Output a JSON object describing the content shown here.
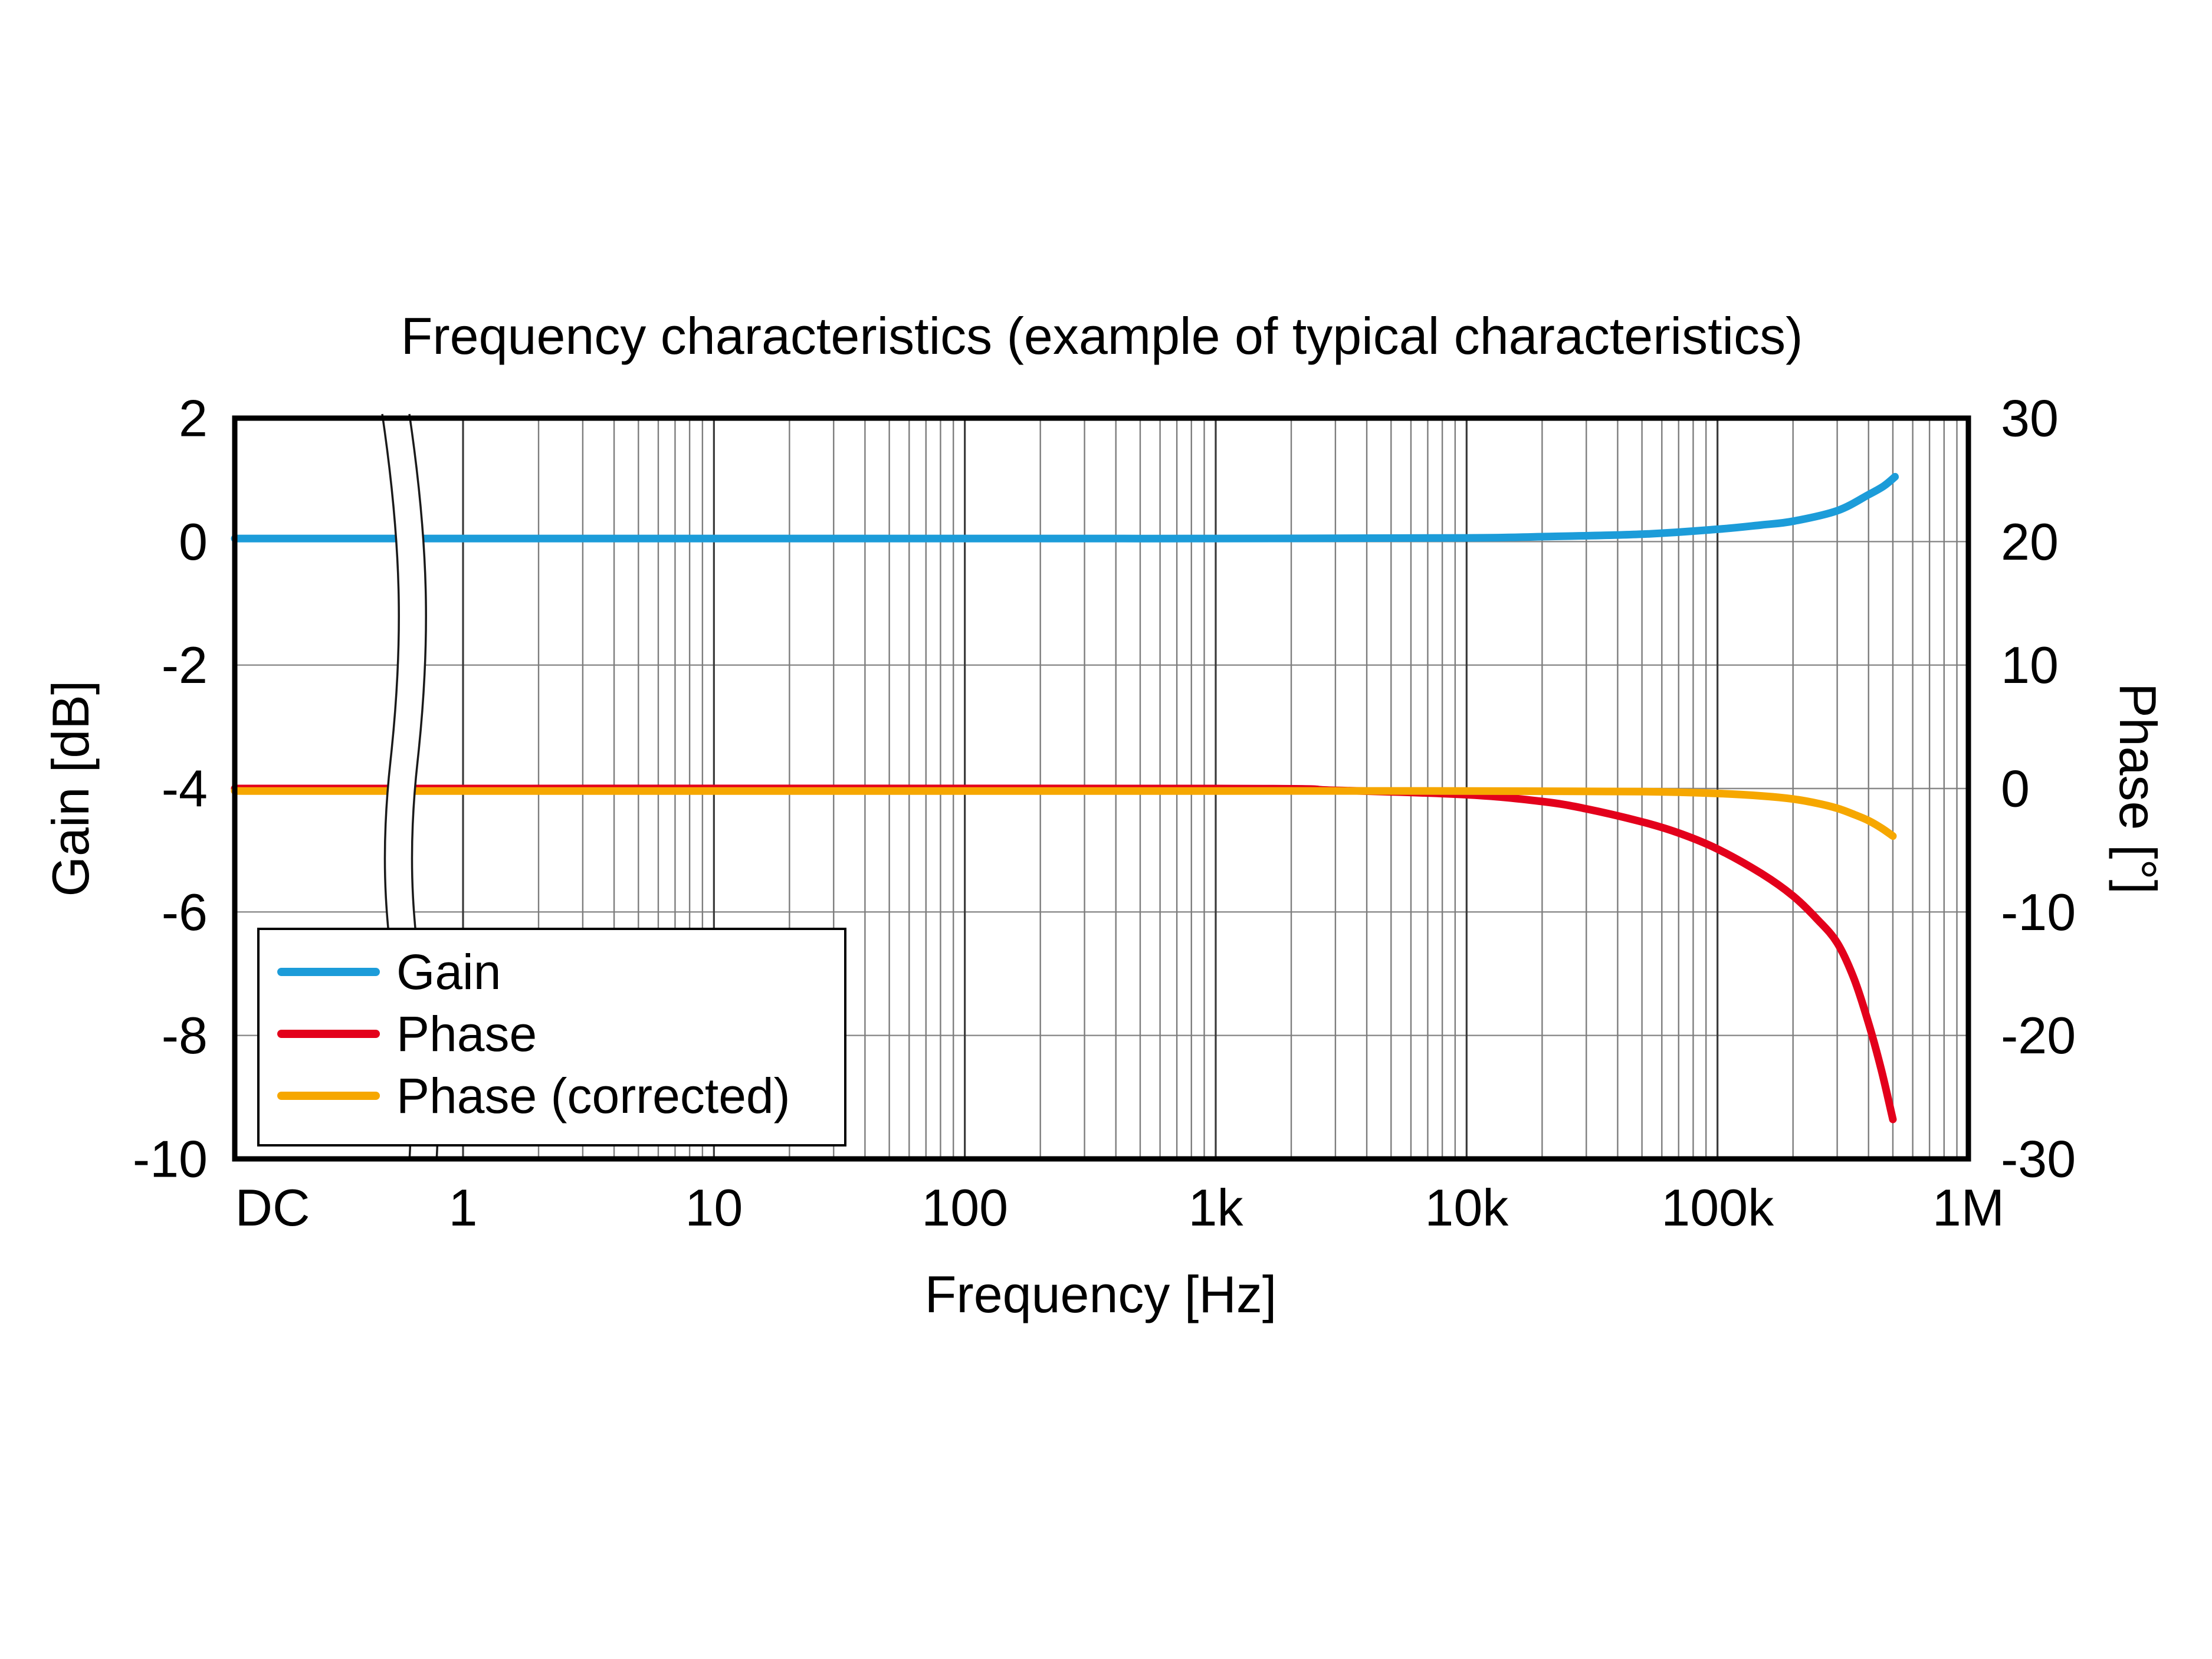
{
  "chart_data": {
    "type": "line",
    "title": "Frequency characteristics (example of typical characteristics)",
    "x_axis": {
      "label": "Frequency [Hz]",
      "scale": "log",
      "tick_labels": [
        "DC",
        "1",
        "10",
        "100",
        "1k",
        "10k",
        "100k",
        "1M"
      ],
      "axis_break": "between DC and 1",
      "range_hz": [
        1,
        1000000
      ]
    },
    "y_axis_left": {
      "label": "Gain [dB]",
      "min": -10,
      "max": 2,
      "ticks": [
        2,
        0,
        -2,
        -4,
        -6,
        -8,
        -10
      ]
    },
    "y_axis_right": {
      "label": "Phase [°]",
      "min": -30,
      "max": 30,
      "ticks": [
        30,
        20,
        10,
        0,
        -10,
        -20,
        -30
      ]
    },
    "grid": true,
    "legend": {
      "position": "lower left",
      "entries": [
        "Gain",
        "Phase",
        "Phase (corrected)"
      ]
    },
    "series": [
      {
        "name": "Gain",
        "axis": "left",
        "unit": "dB",
        "color": "#1c9cd9",
        "points": [
          [
            1,
            0.05
          ],
          [
            100,
            0.05
          ],
          [
            1000,
            0.05
          ],
          [
            10000,
            0.06
          ],
          [
            20000,
            0.08
          ],
          [
            50000,
            0.12
          ],
          [
            100000,
            0.2
          ],
          [
            150000,
            0.27
          ],
          [
            200000,
            0.33
          ],
          [
            300000,
            0.5
          ],
          [
            400000,
            0.76
          ],
          [
            460000,
            0.9
          ],
          [
            510000,
            1.05
          ]
        ]
      },
      {
        "name": "Phase",
        "axis": "right",
        "unit": "deg",
        "color": "#e3001b",
        "points": [
          [
            1,
            0
          ],
          [
            1000,
            0
          ],
          [
            3000,
            -0.15
          ],
          [
            10000,
            -0.5
          ],
          [
            20000,
            -1.05
          ],
          [
            30000,
            -1.65
          ],
          [
            50000,
            -2.7
          ],
          [
            70000,
            -3.6
          ],
          [
            100000,
            -4.9
          ],
          [
            150000,
            -6.9
          ],
          [
            200000,
            -8.7
          ],
          [
            250000,
            -10.6
          ],
          [
            300000,
            -12.5
          ],
          [
            350000,
            -15.4
          ],
          [
            400000,
            -19.0
          ],
          [
            450000,
            -22.8
          ],
          [
            500000,
            -26.8
          ]
        ]
      },
      {
        "name": "Phase (corrected)",
        "axis": "right",
        "unit": "deg",
        "color": "#f6a700",
        "points": [
          [
            1,
            -0.2
          ],
          [
            1000,
            -0.2
          ],
          [
            10000,
            -0.2
          ],
          [
            50000,
            -0.25
          ],
          [
            100000,
            -0.4
          ],
          [
            150000,
            -0.6
          ],
          [
            200000,
            -0.85
          ],
          [
            250000,
            -1.2
          ],
          [
            300000,
            -1.6
          ],
          [
            350000,
            -2.1
          ],
          [
            400000,
            -2.6
          ],
          [
            450000,
            -3.2
          ],
          [
            500000,
            -3.85
          ]
        ]
      }
    ]
  }
}
